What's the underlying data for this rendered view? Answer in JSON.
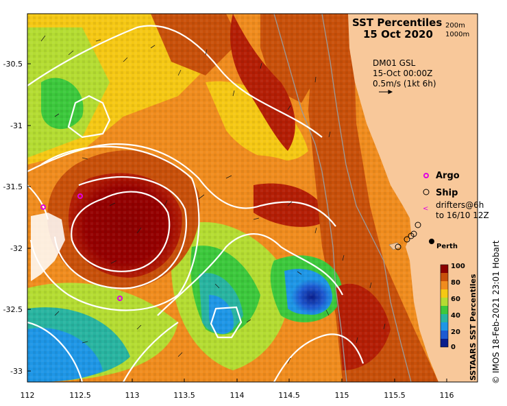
{
  "map": {
    "title_line1": "SST Percentiles",
    "title_line2": "15 Oct 2020",
    "isobath_1": "200m",
    "isobath_2": "1000m",
    "current_model": "DM01 GSL",
    "current_time": "15-Oct 00:00Z",
    "current_scale": "0.5m/s (1kt 6h)",
    "legend_argo": "Argo",
    "legend_ship": "Ship",
    "legend_drifters_1": "drifters@6h",
    "legend_drifters_2": "to 16/10 12Z",
    "city": "Perth",
    "colorbar_title": "SSTAARS SST Percentiles",
    "colorbar_ticks": [
      "100",
      "80",
      "60",
      "40",
      "20",
      "0"
    ],
    "colorbar_colors": [
      "#8b0000",
      "#c8500a",
      "#f08c1e",
      "#f5c814",
      "#b4dc32",
      "#3cc83c",
      "#28b4a0",
      "#1e96e6",
      "#1e5ad2",
      "#0a1e8c"
    ],
    "credit": "© IMOS 18-Feb-2021 23:01 Hobart",
    "lon_ticks": [
      "112",
      "112.5",
      "113",
      "113.5",
      "114",
      "114.5",
      "115",
      "115.5",
      "116"
    ],
    "lat_ticks": [
      "-30.5",
      "-31",
      "-31.5",
      "-32",
      "-32.5",
      "-33"
    ],
    "colors": {
      "land": "#f8c89a",
      "argo": "#e000e0",
      "drifter": "#e000e0"
    }
  }
}
